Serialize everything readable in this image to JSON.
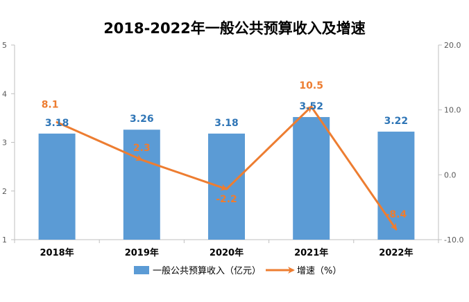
{
  "chart_data": {
    "type": "bar+line",
    "title": "2018-2022年一般公共预算收入及增速",
    "categories": [
      "2018年",
      "2019年",
      "2020年",
      "2021年",
      "2022年"
    ],
    "series": [
      {
        "name": "一般公共预算收入（亿元）",
        "type": "bar",
        "axis": "left",
        "values": [
          3.18,
          3.26,
          3.18,
          3.52,
          3.22
        ],
        "labels": [
          "3.18",
          "3.26",
          "3.18",
          "3.52",
          "3.22"
        ],
        "color": "#5b9bd5",
        "label_color": "#2e75b6"
      },
      {
        "name": "增速（%）",
        "type": "line",
        "axis": "right",
        "values": [
          8.1,
          2.3,
          -2.2,
          10.5,
          -8.4
        ],
        "labels": [
          "8.1",
          "2.3",
          "-2.2",
          "10.5",
          "-8.4"
        ],
        "color": "#ed7d31"
      }
    ],
    "left_axis": {
      "ylim": [
        1,
        5
      ],
      "ticks": [
        "1",
        "2",
        "3",
        "4",
        "5"
      ]
    },
    "right_axis": {
      "ylim": [
        -10,
        20
      ],
      "ticks": [
        "-10.0",
        "0.0",
        "10.0",
        "20.0"
      ]
    },
    "legend": {
      "position": "bottom",
      "items": [
        "一般公共预算收入（亿元）",
        "增速（%）"
      ]
    },
    "grid": false
  }
}
